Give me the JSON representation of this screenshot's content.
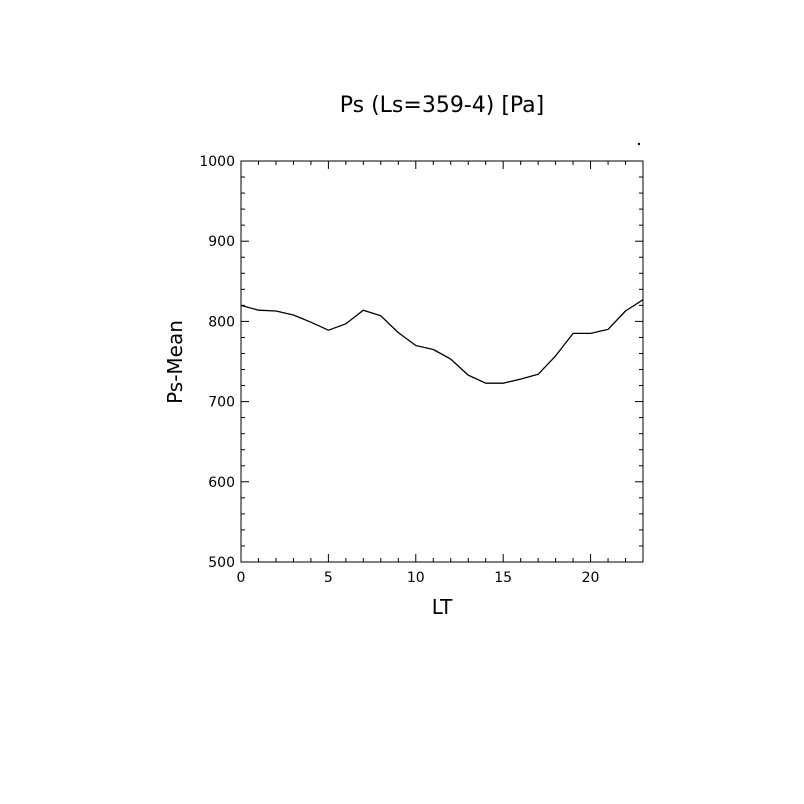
{
  "chart_data": {
    "type": "line",
    "title": "Ps (Ls=359-4) [Pa]",
    "xlabel": "LT",
    "ylabel": "Ps-Mean",
    "xlim": [
      0,
      23
    ],
    "ylim": [
      500,
      1000
    ],
    "x_ticks": [
      0,
      5,
      10,
      15,
      20
    ],
    "x_tick_labels": [
      "0",
      "5",
      "10",
      "15",
      "20"
    ],
    "y_ticks": [
      500,
      600,
      700,
      800,
      900,
      1000
    ],
    "y_tick_labels": [
      "500",
      "600",
      "700",
      "800",
      "900",
      "1000"
    ],
    "grid": false,
    "series": [
      {
        "x": [
          0,
          1,
          2,
          3,
          4,
          5,
          6,
          7,
          8,
          9,
          10,
          11,
          12,
          13,
          14,
          15,
          16,
          17,
          18,
          19,
          20,
          21,
          22,
          23
        ],
        "y": [
          820,
          814,
          813,
          808,
          799,
          789,
          797,
          814,
          807,
          786,
          770,
          765,
          753,
          733,
          723,
          723,
          728,
          734,
          757,
          785,
          785,
          790,
          813,
          827
        ],
        "color": "#000000"
      }
    ]
  }
}
